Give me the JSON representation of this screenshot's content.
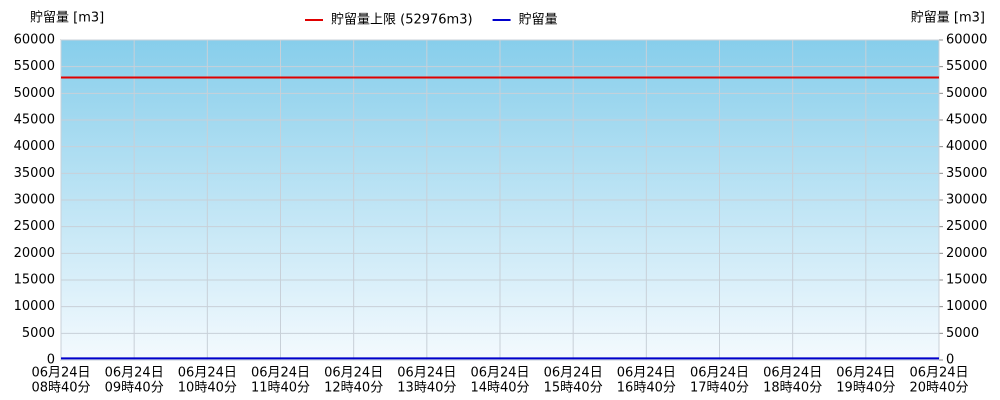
{
  "chart_data": {
    "type": "line",
    "y_label": "貯留量 [m3]",
    "y2_label": "貯留量 [m3]",
    "categories": [
      [
        "06月24日",
        "08時40分"
      ],
      [
        "06月24日",
        "09時40分"
      ],
      [
        "06月24日",
        "10時40分"
      ],
      [
        "06月24日",
        "11時40分"
      ],
      [
        "06月24日",
        "12時40分"
      ],
      [
        "06月24日",
        "13時40分"
      ],
      [
        "06月24日",
        "14時40分"
      ],
      [
        "06月24日",
        "15時40分"
      ],
      [
        "06月24日",
        "16時40分"
      ],
      [
        "06月24日",
        "17時40分"
      ],
      [
        "06月24日",
        "18時40分"
      ],
      [
        "06月24日",
        "19時40分"
      ],
      [
        "06月24日",
        "20時40分"
      ]
    ],
    "series": [
      {
        "name": "貯留量上限 (52976m3)",
        "color": "#e00000",
        "values": [
          52976,
          52976,
          52976,
          52976,
          52976,
          52976,
          52976,
          52976,
          52976,
          52976,
          52976,
          52976,
          52976
        ]
      },
      {
        "name": "貯留量",
        "color": "#0000cc",
        "values": [
          300,
          300,
          300,
          300,
          300,
          300,
          300,
          300,
          300,
          300,
          300,
          300,
          300
        ]
      }
    ],
    "ylim": [
      0,
      60000
    ],
    "yticks": [
      0,
      5000,
      10000,
      15000,
      20000,
      25000,
      30000,
      35000,
      40000,
      45000,
      50000,
      55000,
      60000
    ],
    "y2lim": [
      0,
      60000
    ],
    "y2ticks": [
      0,
      5000,
      10000,
      15000,
      20000,
      25000,
      30000,
      35000,
      40000,
      45000,
      50000,
      55000,
      60000
    ],
    "grid": true
  }
}
